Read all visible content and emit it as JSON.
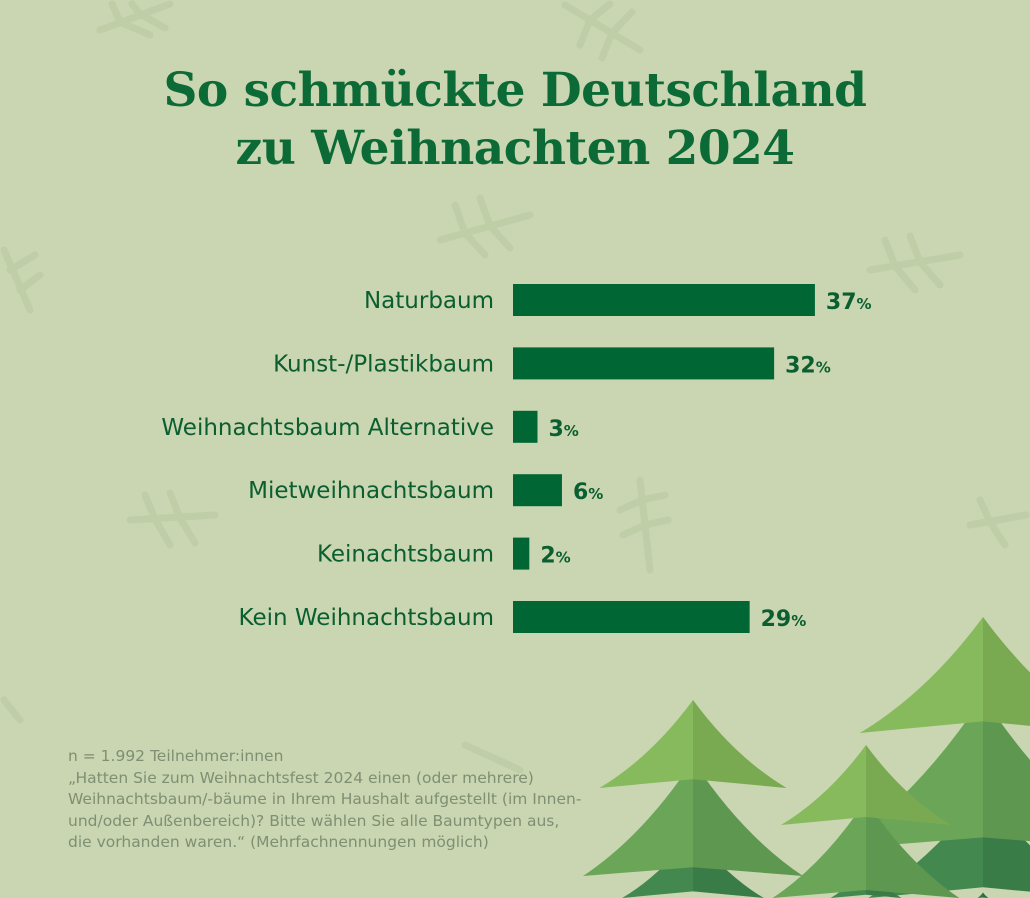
{
  "title_lines": [
    "So schmückte Deutschland",
    "zu Weihnachten 2024"
  ],
  "colors": {
    "background": "#c9d6b1",
    "bar": "#006633",
    "title": "#0b6a35",
    "label": "#0b5e30"
  },
  "chart_data": {
    "type": "bar",
    "orientation": "horizontal",
    "title": "So schmückte Deutschland zu Weihnachten 2024",
    "categories": [
      "Naturbaum",
      "Kunst-/Plastikbaum",
      "Weihnachtsbaum Alternative",
      "Mietweihnachtsbaum",
      "Keinachtsbaum",
      "Kein Weihnachtsbaum"
    ],
    "values": [
      37,
      32,
      3,
      6,
      2,
      29
    ],
    "unit": "%",
    "xlim": [
      0,
      100
    ],
    "grid": false
  },
  "footnote": {
    "sample": "n = 1.992 Teilnehmer:innen",
    "question_lines": [
      "„Hatten Sie zum Weihnachtsfest 2024 einen (oder mehrere)",
      "Weihnachtsbaum/-bäume in Ihrem Haushalt aufgestellt (im Innen-",
      "und/oder Außenbereich)? Bitte wählen Sie alle Baumtypen aus,",
      "die vorhanden waren.“ (Mehrfachnennungen möglich)"
    ]
  }
}
